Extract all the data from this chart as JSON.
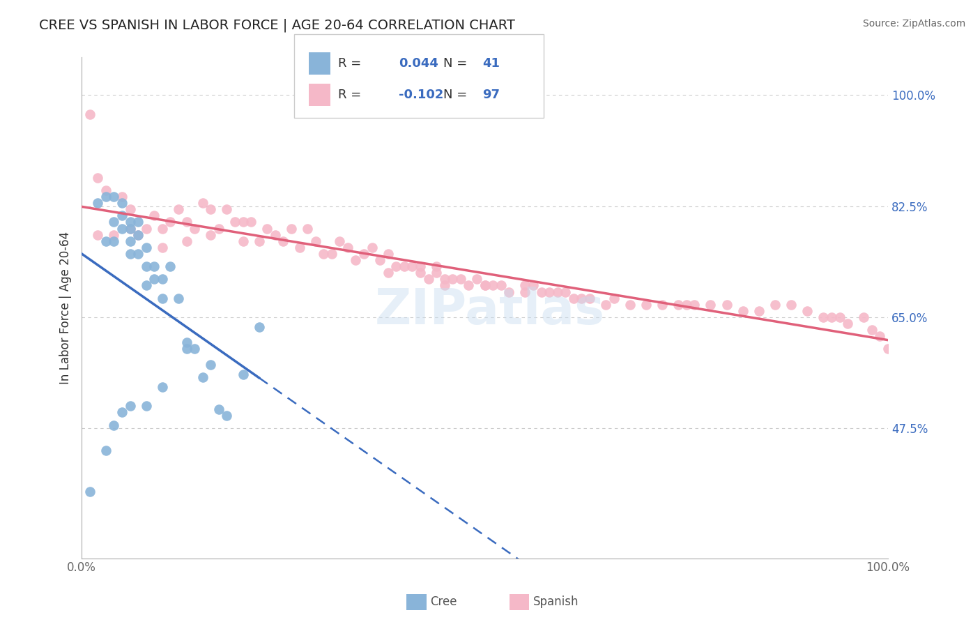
{
  "title": "CREE VS SPANISH IN LABOR FORCE | AGE 20-64 CORRELATION CHART",
  "source": "Source: ZipAtlas.com",
  "ylabel": "In Labor Force | Age 20-64",
  "xlim": [
    0.0,
    1.0
  ],
  "ylim": [
    0.27,
    1.06
  ],
  "yticks": [
    0.475,
    0.65,
    0.825,
    1.0
  ],
  "ytick_labels": [
    "47.5%",
    "65.0%",
    "82.5%",
    "100.0%"
  ],
  "cree_R": 0.044,
  "cree_N": 41,
  "spanish_R": -0.102,
  "spanish_N": 97,
  "cree_color": "#89b4d9",
  "spanish_color": "#f5b8c8",
  "cree_line_color": "#3a6bbf",
  "spanish_line_color": "#e0607a",
  "legend_color": "#3a6bbf",
  "background_color": "#ffffff",
  "grid_color": "#cccccc",
  "cree_x": [
    0.01,
    0.02,
    0.03,
    0.03,
    0.04,
    0.04,
    0.04,
    0.05,
    0.05,
    0.05,
    0.06,
    0.06,
    0.06,
    0.06,
    0.07,
    0.07,
    0.07,
    0.08,
    0.08,
    0.08,
    0.09,
    0.09,
    0.1,
    0.1,
    0.11,
    0.12,
    0.13,
    0.14,
    0.15,
    0.16,
    0.17,
    0.18,
    0.2,
    0.22,
    0.13,
    0.1,
    0.08,
    0.06,
    0.05,
    0.04,
    0.03
  ],
  "cree_y": [
    0.375,
    0.83,
    0.84,
    0.77,
    0.84,
    0.8,
    0.77,
    0.83,
    0.81,
    0.79,
    0.8,
    0.79,
    0.77,
    0.75,
    0.8,
    0.78,
    0.75,
    0.76,
    0.73,
    0.7,
    0.73,
    0.71,
    0.68,
    0.71,
    0.73,
    0.68,
    0.61,
    0.6,
    0.555,
    0.575,
    0.505,
    0.495,
    0.56,
    0.635,
    0.6,
    0.54,
    0.51,
    0.51,
    0.5,
    0.48,
    0.44
  ],
  "spanish_x": [
    0.01,
    0.02,
    0.02,
    0.03,
    0.04,
    0.05,
    0.06,
    0.06,
    0.07,
    0.08,
    0.09,
    0.1,
    0.1,
    0.11,
    0.12,
    0.13,
    0.13,
    0.14,
    0.15,
    0.16,
    0.16,
    0.17,
    0.18,
    0.19,
    0.2,
    0.2,
    0.21,
    0.22,
    0.23,
    0.24,
    0.25,
    0.26,
    0.27,
    0.28,
    0.29,
    0.3,
    0.31,
    0.32,
    0.33,
    0.34,
    0.35,
    0.36,
    0.37,
    0.38,
    0.39,
    0.4,
    0.41,
    0.42,
    0.43,
    0.44,
    0.45,
    0.46,
    0.47,
    0.48,
    0.49,
    0.5,
    0.51,
    0.52,
    0.53,
    0.55,
    0.56,
    0.57,
    0.58,
    0.59,
    0.6,
    0.61,
    0.62,
    0.63,
    0.65,
    0.66,
    0.68,
    0.7,
    0.72,
    0.74,
    0.75,
    0.76,
    0.78,
    0.8,
    0.82,
    0.84,
    0.86,
    0.88,
    0.9,
    0.92,
    0.93,
    0.94,
    0.95,
    0.97,
    0.98,
    0.99,
    1.0,
    0.38,
    0.42,
    0.44,
    0.45,
    0.5,
    0.55
  ],
  "spanish_y": [
    0.97,
    0.87,
    0.78,
    0.85,
    0.78,
    0.84,
    0.79,
    0.82,
    0.78,
    0.79,
    0.81,
    0.76,
    0.79,
    0.8,
    0.82,
    0.77,
    0.8,
    0.79,
    0.83,
    0.78,
    0.82,
    0.79,
    0.82,
    0.8,
    0.77,
    0.8,
    0.8,
    0.77,
    0.79,
    0.78,
    0.77,
    0.79,
    0.76,
    0.79,
    0.77,
    0.75,
    0.75,
    0.77,
    0.76,
    0.74,
    0.75,
    0.76,
    0.74,
    0.75,
    0.73,
    0.73,
    0.73,
    0.72,
    0.71,
    0.72,
    0.7,
    0.71,
    0.71,
    0.7,
    0.71,
    0.7,
    0.7,
    0.7,
    0.69,
    0.7,
    0.7,
    0.69,
    0.69,
    0.69,
    0.69,
    0.68,
    0.68,
    0.68,
    0.67,
    0.68,
    0.67,
    0.67,
    0.67,
    0.67,
    0.67,
    0.67,
    0.67,
    0.67,
    0.66,
    0.66,
    0.67,
    0.67,
    0.66,
    0.65,
    0.65,
    0.65,
    0.64,
    0.65,
    0.63,
    0.62,
    0.6,
    0.72,
    0.73,
    0.73,
    0.71,
    0.7,
    0.69
  ]
}
